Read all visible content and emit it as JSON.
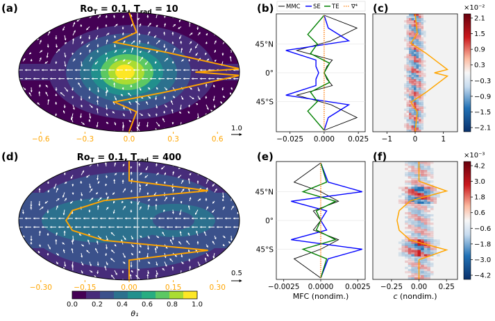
{
  "colors": {
    "orange": "#ffa500",
    "mmc": "#000000",
    "se": "#0000ff",
    "te": "#008000",
    "div4": "#ff7f0e",
    "viridis": [
      "#440154",
      "#472c7a",
      "#3b518b",
      "#2c718e",
      "#21908d",
      "#27ad81",
      "#5cc863",
      "#aadc32",
      "#fde725"
    ],
    "coolwarm_neg": "#08306b",
    "coolwarm_pos": "#67000d",
    "oceanbg": "#ffffff"
  },
  "panels": {
    "a": {
      "letter": "(a)",
      "title_html": "<tspan font-weight=\"bold\">Ro</tspan><tspan font-weight=\"bold\" font-size=\"9\" dy=\"3\">T</tspan><tspan font-weight=\"bold\" dy=\"-3\"> = 0.1, T</tspan><tspan font-weight=\"bold\" font-size=\"9\" dy=\"3\">rad</tspan><tspan font-weight=\"bold\" dy=\"-3\"> = 10</tspan>",
      "ticks": [
        "−0.6",
        "−0.3",
        "0.0",
        "0.3",
        "0.6"
      ],
      "ref_arrow": "1.0"
    },
    "d": {
      "letter": "(d)",
      "title_html": "<tspan font-weight=\"bold\">Ro</tspan><tspan font-weight=\"bold\" font-size=\"9\" dy=\"3\">T</tspan><tspan font-weight=\"bold\" dy=\"-3\"> = 0.1, T</tspan><tspan font-weight=\"bold\" font-size=\"9\" dy=\"3\">rad</tspan><tspan font-weight=\"bold\" dy=\"-3\"> = 400</tspan>",
      "ticks": [
        "−0.30",
        "−0.15",
        "0.00",
        "0.15",
        "0.30"
      ],
      "ref_arrow": "0.5"
    },
    "b": {
      "letter": "(b)",
      "xticks": [
        "−0.025",
        "0.000",
        "0.025"
      ],
      "yticks": [
        "45°N",
        "0°",
        "45°S"
      ],
      "legend": [
        "MMC",
        "SE",
        "TE",
        "∇⁴"
      ]
    },
    "e": {
      "letter": "(e)",
      "xticks": [
        "−0.0025",
        "0.0000",
        "0.0025"
      ],
      "yticks": [
        "45°N",
        "0°",
        "45°S"
      ],
      "xlabel": "MFC (nondim.)"
    },
    "c": {
      "letter": "(c)",
      "xticks": [
        "−1",
        "0",
        "1"
      ],
      "cbar_ticks": [
        "2.1",
        "1.5",
        "0.9",
        "0.3",
        "−0.3",
        "−0.9",
        "−1.5",
        "−2.1"
      ],
      "cbar_exp": "×10⁻²"
    },
    "f": {
      "letter": "(f)",
      "xticks": [
        "−0.25",
        "0.00",
        "0.25"
      ],
      "cbar_ticks": [
        "4.2",
        "3.0",
        "1.8",
        "0.6",
        "−0.6",
        "−1.8",
        "−3.0",
        "−4.2"
      ],
      "cbar_exp": "×10⁻³",
      "xlabel_c": "c",
      "xlabel_rest": " (nondim.)"
    }
  },
  "theta_colorbar": {
    "ticks": [
      "0.0",
      "0.2",
      "0.4",
      "0.6",
      "0.8",
      "1.0"
    ],
    "label": "θ₁"
  },
  "chart_data": [
    {
      "type": "line",
      "panel": "a",
      "title": "Ro_T = 0.1, T_rad = 10",
      "series": [
        {
          "name": "zonal-mean u (orange profile)",
          "x_lat_deg": [
            90,
            60,
            45,
            30,
            15,
            5,
            0,
            -5,
            -15,
            -30,
            -45,
            -60,
            -90
          ],
          "values": [
            0.0,
            0.05,
            -0.1,
            0.25,
            0.55,
            0.75,
            0.45,
            0.75,
            0.55,
            0.25,
            -0.1,
            0.05,
            0.0
          ]
        }
      ],
      "xlim": [
        -0.75,
        0.75
      ]
    },
    {
      "type": "line",
      "panel": "d",
      "title": "Ro_T = 0.1, T_rad = 400",
      "series": [
        {
          "name": "zonal-mean u (orange profile)",
          "x_lat_deg": [
            90,
            60,
            45,
            30,
            15,
            0,
            -15,
            -30,
            -45,
            -60,
            -90
          ],
          "values": [
            0.0,
            0.0,
            0.25,
            -0.08,
            -0.18,
            -0.2,
            -0.18,
            -0.08,
            0.25,
            0.0,
            0.0
          ]
        }
      ],
      "xlim": [
        -0.35,
        0.35
      ]
    },
    {
      "type": "line",
      "panel": "b",
      "xlim": [
        -0.035,
        0.03
      ],
      "yaxis": "latitude",
      "series": [
        {
          "name": "MMC",
          "lat": [
            90,
            70,
            50,
            35,
            20,
            10,
            0,
            -10,
            -20,
            -35,
            -50,
            -70,
            -90
          ],
          "values": [
            0,
            0.024,
            0.005,
            -0.02,
            0.006,
            0.002,
            0.0,
            0.002,
            0.006,
            -0.02,
            0.005,
            0.024,
            0
          ]
        },
        {
          "name": "SE",
          "lat": [
            90,
            70,
            50,
            35,
            20,
            10,
            0,
            -10,
            -20,
            -35,
            -50,
            -70,
            -90
          ],
          "values": [
            0,
            0.003,
            0.018,
            -0.028,
            -0.006,
            -0.006,
            -0.004,
            -0.006,
            -0.006,
            -0.028,
            0.018,
            0.003,
            0
          ]
        },
        {
          "name": "TE",
          "lat": [
            90,
            60,
            45,
            30,
            15,
            0,
            -15,
            -30,
            -45,
            -60,
            -90
          ],
          "values": [
            0,
            -0.012,
            -0.005,
            -0.01,
            0.004,
            0.0,
            0.004,
            -0.01,
            -0.005,
            -0.012,
            0
          ]
        },
        {
          "name": "∇⁴",
          "lat": [
            90,
            0,
            -90
          ],
          "values": [
            0.0,
            0.0,
            0.0
          ]
        }
      ]
    },
    {
      "type": "line",
      "panel": "e",
      "xlim": [
        -0.003,
        0.003
      ],
      "xlabel": "MFC (nondim.)",
      "yaxis": "latitude",
      "series": [
        {
          "name": "MMC",
          "lat": [
            90,
            60,
            45,
            30,
            15,
            0,
            -15,
            -30,
            -45,
            -60,
            -90
          ],
          "values": [
            0,
            -0.0018,
            0.0,
            0.0012,
            -0.0005,
            0.0,
            -0.0005,
            0.0012,
            0.0,
            -0.0018,
            0
          ]
        },
        {
          "name": "SE",
          "lat": [
            90,
            60,
            45,
            30,
            15,
            0,
            -15,
            -30,
            -45,
            -60,
            -90
          ],
          "values": [
            0,
            0.0005,
            0.0028,
            -0.002,
            0.0004,
            0.0,
            0.0004,
            -0.002,
            0.0028,
            0.0005,
            0
          ]
        },
        {
          "name": "TE",
          "lat": [
            90,
            60,
            45,
            30,
            15,
            0,
            -15,
            -30,
            -45,
            -60,
            -90
          ],
          "values": [
            0,
            0.0004,
            -0.0012,
            0.001,
            -0.0003,
            0.0,
            -0.0003,
            0.001,
            -0.0012,
            0.0004,
            0
          ]
        },
        {
          "name": "∇⁴",
          "lat": [
            90,
            0,
            -90
          ],
          "values": [
            0.0,
            0.0,
            0.0
          ]
        }
      ]
    },
    {
      "type": "heatmap",
      "panel": "c",
      "xlim": [
        -1.5,
        1.5
      ],
      "clim": [
        -0.021,
        0.021
      ]
    },
    {
      "type": "heatmap",
      "panel": "f",
      "xlim": [
        -0.42,
        0.35
      ],
      "clim": [
        -0.0042,
        0.0042
      ],
      "xlabel": "c (nondim.)"
    }
  ]
}
